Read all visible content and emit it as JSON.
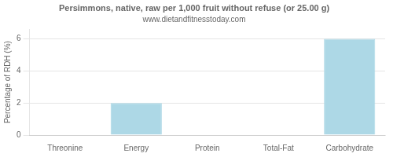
{
  "chart_data": {
    "type": "bar",
    "title": "Persimmons, native, raw per 1,000 fruit without refuse (or 25.00 g)",
    "subtitle": "www.dietandfitnesstoday.com",
    "categories": [
      "Threonine",
      "Energy",
      "Protein",
      "Total-Fat",
      "Carbohydrate"
    ],
    "values": [
      0,
      2,
      0,
      0,
      6
    ],
    "color": "#add8e6",
    "ylabel": "Percentage of RDH (%)",
    "ylim": [
      0,
      6.6
    ],
    "yticks": [
      0,
      2,
      4,
      6
    ],
    "grid": true
  }
}
